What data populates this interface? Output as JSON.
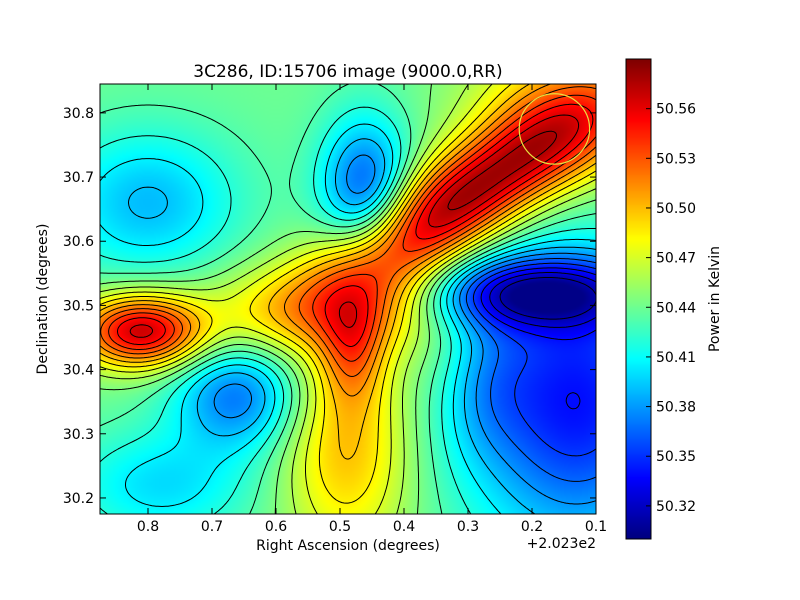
{
  "chart_data": {
    "type": "heatmap",
    "title": "3C286, ID:15706 image (9000.0,RR)",
    "xlabel": "Right Ascension (degrees)",
    "ylabel": "Declination (degrees)",
    "x_offset_label": "+2.023e2",
    "xlim": [
      0.875,
      0.1
    ],
    "ylim": [
      30.175,
      30.845
    ],
    "x_ticks": [
      0.8,
      0.7,
      0.6,
      0.5,
      0.4,
      0.3,
      0.2,
      0.1
    ],
    "x_tick_labels": [
      "0.8",
      "0.7",
      "0.6",
      "0.5",
      "0.4",
      "0.3",
      "0.2",
      "0.1"
    ],
    "y_ticks": [
      30.2,
      30.3,
      30.4,
      30.5,
      30.6,
      30.7,
      30.8
    ],
    "y_tick_labels": [
      "30.2",
      "30.3",
      "30.4",
      "30.5",
      "30.6",
      "30.7",
      "30.8"
    ],
    "colormap": "jet",
    "colorbar": {
      "label": "Power in Kelvin",
      "range": [
        50.3,
        50.59
      ],
      "ticks": [
        50.32,
        50.35,
        50.38,
        50.41,
        50.44,
        50.47,
        50.5,
        50.53,
        50.56
      ],
      "tick_labels": [
        "50.32",
        "50.35",
        "50.38",
        "50.41",
        "50.44",
        "50.47",
        "50.50",
        "50.53",
        "50.56"
      ]
    },
    "contours": true,
    "contour_color": "#000000",
    "beam_circle": {
      "ra": 0.165,
      "dec": 30.775,
      "radius_deg": 0.055,
      "color": "#e8e040"
    },
    "field_features": [
      {
        "ra": 0.26,
        "dec": 30.7,
        "amp": 0.11,
        "sx": 0.16,
        "sy": 0.05,
        "rot": -0.55
      },
      {
        "ra": 0.15,
        "dec": 30.8,
        "amp": 0.06,
        "sx": 0.1,
        "sy": 0.08,
        "rot": 0.0
      },
      {
        "ra": 0.36,
        "dec": 30.62,
        "amp": 0.05,
        "sx": 0.1,
        "sy": 0.05,
        "rot": -0.6
      },
      {
        "ra": 0.45,
        "dec": 30.52,
        "amp": 0.06,
        "sx": 0.08,
        "sy": 0.06,
        "rot": 0.0
      },
      {
        "ra": 0.48,
        "dec": 30.43,
        "amp": 0.05,
        "sx": 0.035,
        "sy": 0.06,
        "rot": 0.0
      },
      {
        "ra": 0.81,
        "dec": 30.46,
        "amp": 0.13,
        "sx": 0.07,
        "sy": 0.04,
        "rot": 0.0
      },
      {
        "ra": 0.58,
        "dec": 30.49,
        "amp": 0.05,
        "sx": 0.09,
        "sy": 0.05,
        "rot": 0.0
      },
      {
        "ra": 0.49,
        "dec": 30.28,
        "amp": 0.06,
        "sx": 0.07,
        "sy": 0.12,
        "rot": 0.0
      },
      {
        "ra": 0.33,
        "dec": 30.4,
        "amp": 0.03,
        "sx": 0.05,
        "sy": 0.08,
        "rot": 0.0
      },
      {
        "ra": 0.2,
        "dec": 30.52,
        "amp": -0.1,
        "sx": 0.12,
        "sy": 0.04,
        "rot": 0.0
      },
      {
        "ra": 0.13,
        "dec": 30.35,
        "amp": -0.1,
        "sx": 0.12,
        "sy": 0.16,
        "rot": 0.0
      },
      {
        "ra": 0.3,
        "dec": 30.38,
        "amp": -0.04,
        "sx": 0.06,
        "sy": 0.08,
        "rot": 0.0
      },
      {
        "ra": 0.46,
        "dec": 30.68,
        "amp": -0.08,
        "sx": 0.05,
        "sy": 0.08,
        "rot": 0.0
      },
      {
        "ra": 0.66,
        "dec": 30.36,
        "amp": -0.07,
        "sx": 0.07,
        "sy": 0.06,
        "rot": 0.0
      },
      {
        "ra": 0.8,
        "dec": 30.66,
        "amp": -0.05,
        "sx": 0.1,
        "sy": 0.08,
        "rot": 0.0
      },
      {
        "ra": 0.78,
        "dec": 30.22,
        "amp": -0.04,
        "sx": 0.1,
        "sy": 0.06,
        "rot": 0.0
      }
    ]
  }
}
